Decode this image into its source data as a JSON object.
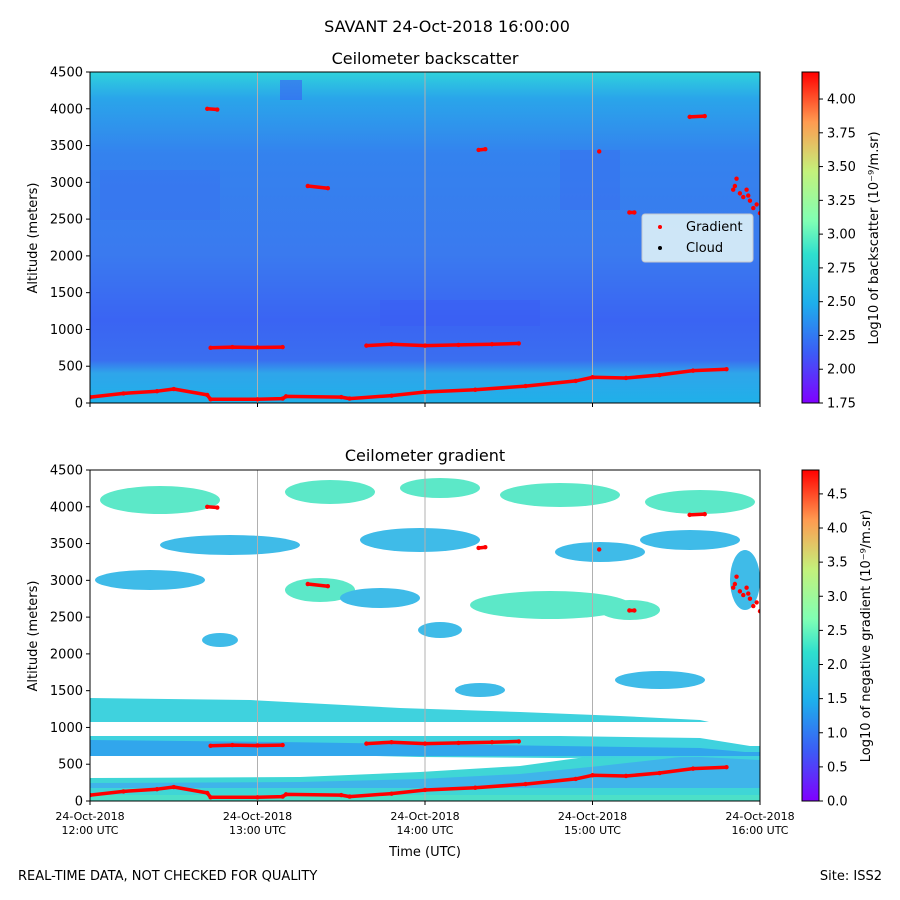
{
  "figure": {
    "title": "SAVANT 24-Oct-2018 16:00:00",
    "footer_left": "REAL-TIME DATA, NOT CHECKED FOR QUALITY",
    "footer_right": "Site: ISS2"
  },
  "chart_data": [
    {
      "type": "heatmap",
      "title": "Ceilometer backscatter",
      "ylabel": "Altitude (meters)",
      "xlabel": "",
      "x_ticks": [
        "24-Oct-2018\n12:00 UTC",
        "24-Oct-2018\n13:00 UTC",
        "24-Oct-2018\n14:00 UTC",
        "24-Oct-2018\n15:00 UTC",
        "24-Oct-2018\n16:00 UTC"
      ],
      "x_tick_labels_shown": false,
      "xlim_hours": [
        12,
        16
      ],
      "ylim": [
        0,
        4500
      ],
      "y_ticks": [
        0,
        500,
        1000,
        1500,
        2000,
        2500,
        3000,
        3500,
        4000,
        4500
      ],
      "grid": "vertical lines at each hour",
      "colormap": "rainbow",
      "colorbar": {
        "label": "Log10 of backscatter (10⁻⁹/m.sr)",
        "range": [
          1.75,
          4.2
        ],
        "ticks": [
          "1.75",
          "2.00",
          "2.25",
          "2.50",
          "2.75",
          "3.00",
          "3.25",
          "3.50",
          "3.75",
          "4.00"
        ]
      },
      "legend": {
        "placement": "center-right",
        "entries": [
          {
            "name": "Gradient",
            "color": "#ff0000"
          },
          {
            "name": "Cloud",
            "color": "#000000"
          }
        ]
      }
    },
    {
      "type": "heatmap",
      "title": "Ceilometer gradient",
      "ylabel": "Altitude (meters)",
      "xlabel": "Time (UTC)",
      "x_ticks": [
        "24-Oct-2018\n12:00 UTC",
        "24-Oct-2018\n13:00 UTC",
        "24-Oct-2018\n14:00 UTC",
        "24-Oct-2018\n15:00 UTC",
        "24-Oct-2018\n16:00 UTC"
      ],
      "x_tick_labels_shown": true,
      "xlim_hours": [
        12,
        16
      ],
      "ylim": [
        0,
        4500
      ],
      "y_ticks": [
        0,
        500,
        1000,
        1500,
        2000,
        2500,
        3000,
        3500,
        4000,
        4500
      ],
      "grid": "vertical lines at each hour",
      "colormap": "rainbow",
      "colorbar": {
        "label": "Log10 of negative gradient (10⁻⁹/m.sr)",
        "range": [
          0,
          4.85
        ],
        "ticks": [
          "0.0",
          "0.5",
          "1.0",
          "1.5",
          "2.0",
          "2.5",
          "3.0",
          "3.5",
          "4.0",
          "4.5"
        ]
      }
    }
  ],
  "gradient_points": {
    "color": "#ff0000",
    "series": [
      {
        "x": [
          12.0,
          12.2,
          12.4,
          12.5,
          12.7,
          12.72,
          13.0,
          13.15,
          13.17,
          13.5,
          13.55,
          13.8,
          14.0,
          14.3,
          14.6,
          14.9,
          15.0,
          15.2,
          15.4,
          15.6,
          15.8
        ],
        "y": [
          80,
          130,
          160,
          190,
          110,
          50,
          50,
          60,
          90,
          80,
          60,
          100,
          150,
          180,
          230,
          300,
          350,
          340,
          380,
          440,
          460
        ]
      },
      {
        "x": [
          12.72,
          12.85,
          13.0,
          13.15
        ],
        "y": [
          750,
          760,
          755,
          760
        ]
      },
      {
        "x": [
          13.65,
          13.8,
          14.0,
          14.2,
          14.4,
          14.56
        ],
        "y": [
          780,
          800,
          780,
          790,
          800,
          810
        ]
      },
      {
        "x": [
          12.7,
          12.76
        ],
        "y": [
          4000,
          3990
        ]
      },
      {
        "x": [
          13.3,
          13.42
        ],
        "y": [
          2950,
          2920
        ]
      },
      {
        "x": [
          14.32,
          14.36
        ],
        "y": [
          3440,
          3450
        ]
      },
      {
        "x": [
          15.04
        ],
        "y": [
          3420
        ]
      },
      {
        "x": [
          15.22,
          15.25
        ],
        "y": [
          2590,
          2590
        ]
      },
      {
        "x": [
          15.58,
          15.67
        ],
        "y": [
          3890,
          3900
        ]
      },
      {
        "x": [
          15.84,
          15.86,
          15.88,
          15.9,
          15.92,
          15.94,
          15.96,
          15.98,
          16.0,
          15.85,
          15.93
        ],
        "y": [
          2900,
          3050,
          2850,
          2800,
          2900,
          2750,
          2650,
          2700,
          2580,
          2950,
          2820
        ]
      }
    ]
  }
}
